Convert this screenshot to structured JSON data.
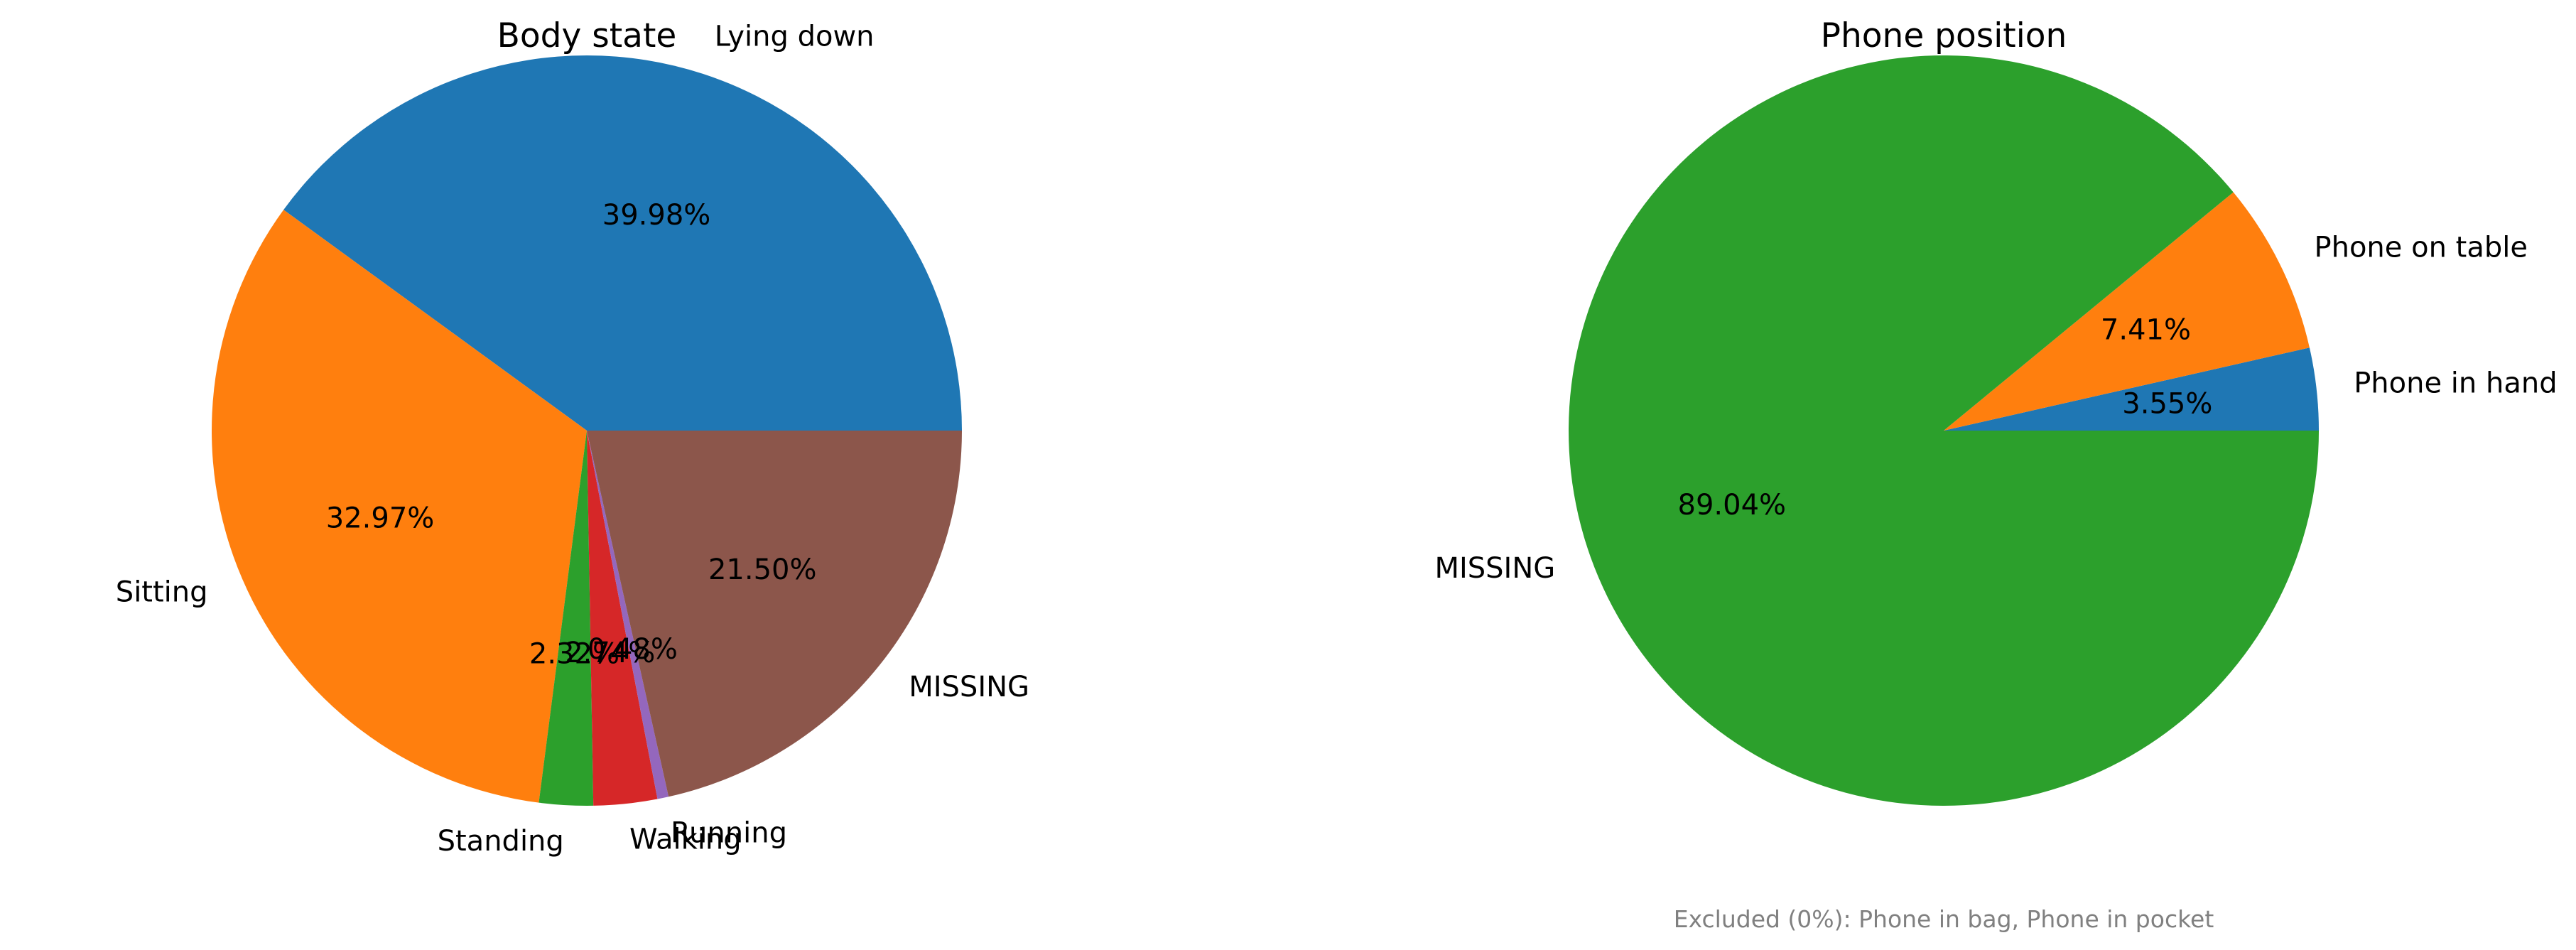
{
  "chart_data": [
    {
      "type": "pie",
      "title": "Body state",
      "categories": [
        "Lying down",
        "Sitting",
        "Standing",
        "Walking",
        "Running",
        "MISSING"
      ],
      "values": [
        39.98,
        32.97,
        2.32,
        2.74,
        0.48,
        21.5
      ],
      "value_labels": [
        "39.98%",
        "32.97%",
        "2.32%",
        "2.74%",
        "0.48%",
        "21.50%"
      ],
      "colors": [
        "#1f77b4",
        "#ff7f0e",
        "#2ca02c",
        "#d62728",
        "#9467bd",
        "#8c564b"
      ],
      "start_angle_deg": 0,
      "direction": "counterclockwise"
    },
    {
      "type": "pie",
      "title": "Phone position",
      "categories": [
        "Phone in hand",
        "Phone on table",
        "MISSING"
      ],
      "values": [
        3.55,
        7.41,
        89.04
      ],
      "value_labels": [
        "3.55%",
        "7.41%",
        "89.04%"
      ],
      "colors": [
        "#1f77b4",
        "#ff7f0e",
        "#2ca02c"
      ],
      "start_angle_deg": 0,
      "direction": "counterclockwise",
      "note": "Excluded (0%): Phone in bag, Phone in pocket"
    }
  ]
}
